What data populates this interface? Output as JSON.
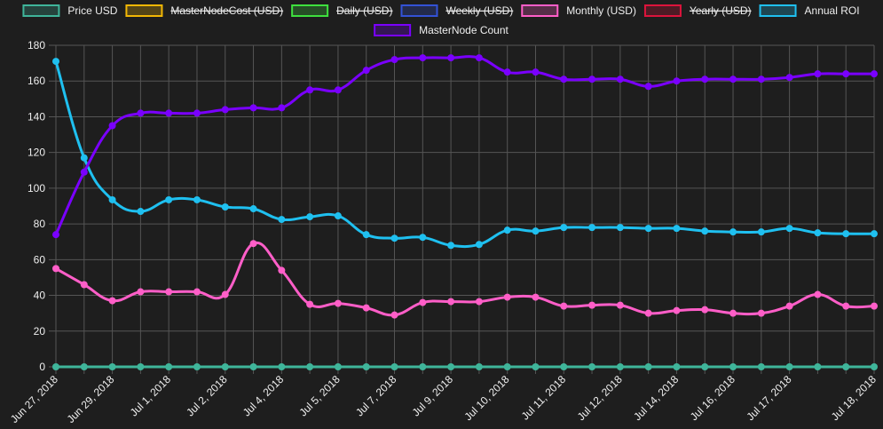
{
  "chart_data": {
    "type": "line",
    "categories": [
      "Jun 27, 2018",
      null,
      "Jun 29, 2018",
      null,
      "Jul 1, 2018",
      null,
      "Jul 2, 2018",
      null,
      "Jul 4, 2018",
      null,
      "Jul 5, 2018",
      null,
      "Jul 7, 2018",
      null,
      "Jul 9, 2018",
      null,
      "Jul 10, 2018",
      null,
      "Jul 11, 2018",
      null,
      "Jul 12, 2018",
      null,
      "Jul 14, 2018",
      null,
      "Jul 16, 2018",
      null,
      "Jul 17, 2018",
      null,
      null,
      "Jul 18, 2018"
    ],
    "ylim": [
      0,
      180
    ],
    "yticks": [
      0,
      20,
      40,
      60,
      80,
      100,
      120,
      140,
      160,
      180
    ],
    "grid": true,
    "legend": "top",
    "series": [
      {
        "name": "Price USD",
        "color": "#3fb59a",
        "hidden": false,
        "values": [
          0,
          0,
          0,
          0,
          0,
          0,
          0,
          0,
          0,
          0,
          0,
          0,
          0,
          0,
          0,
          0,
          0,
          0,
          0,
          0,
          0,
          0,
          0,
          0,
          0,
          0,
          0,
          0,
          0,
          0
        ]
      },
      {
        "name": "MasterNodeCost (USD)",
        "color": "#f2b705",
        "hidden": true,
        "values": [
          null,
          null,
          null,
          null,
          null,
          null,
          null,
          null,
          null,
          null,
          null,
          null,
          null,
          null,
          null,
          null,
          null,
          null,
          null,
          null,
          null,
          null,
          null,
          null,
          null,
          null,
          null,
          null,
          null,
          null
        ]
      },
      {
        "name": "Daily (USD)",
        "color": "#3ee03e",
        "hidden": true,
        "values": [
          null,
          null,
          null,
          null,
          null,
          null,
          null,
          null,
          null,
          null,
          null,
          null,
          null,
          null,
          null,
          null,
          null,
          null,
          null,
          null,
          null,
          null,
          null,
          null,
          null,
          null,
          null,
          null,
          null,
          null
        ]
      },
      {
        "name": "Weekly (USD)",
        "color": "#3352d6",
        "hidden": true,
        "values": [
          null,
          null,
          null,
          null,
          null,
          null,
          null,
          null,
          null,
          null,
          null,
          null,
          null,
          null,
          null,
          null,
          null,
          null,
          null,
          null,
          null,
          null,
          null,
          null,
          null,
          null,
          null,
          null,
          null,
          null
        ]
      },
      {
        "name": "Monthly (USD)",
        "color": "#ff5ec8",
        "hidden": false,
        "values": [
          55,
          46,
          37,
          42,
          42,
          42,
          40.5,
          69,
          54,
          35,
          35.5,
          33,
          29,
          36,
          36.5,
          36.5,
          39,
          39,
          34,
          34.5,
          34.5,
          30,
          31.5,
          32,
          30,
          30,
          34,
          40.5,
          34,
          34
        ]
      },
      {
        "name": "Yearly (USD)",
        "color": "#dc143c",
        "hidden": true,
        "values": [
          null,
          null,
          null,
          null,
          null,
          null,
          null,
          null,
          null,
          null,
          null,
          null,
          null,
          null,
          null,
          null,
          null,
          null,
          null,
          null,
          null,
          null,
          null,
          null,
          null,
          null,
          null,
          null,
          null,
          null
        ]
      },
      {
        "name": "Annual ROI",
        "color": "#1fc0f0",
        "hidden": false,
        "values": [
          171,
          117,
          93.5,
          87,
          93.5,
          93.5,
          89.5,
          88.5,
          82.5,
          84,
          84.5,
          74,
          72,
          72.5,
          68,
          68.5,
          76.5,
          76,
          78,
          78,
          78,
          77.5,
          77.5,
          76,
          75.5,
          75.5,
          77.5,
          75,
          74.5,
          74.5
        ]
      },
      {
        "name": "MasterNode Count",
        "color": "#7a00ff",
        "hidden": false,
        "values": [
          74,
          109,
          135,
          142,
          142,
          142,
          144,
          145,
          145,
          155,
          155,
          166,
          172,
          173,
          173,
          173,
          165,
          165,
          161,
          161,
          161,
          157,
          160,
          161,
          161,
          161,
          162,
          164,
          164,
          164
        ]
      }
    ]
  }
}
